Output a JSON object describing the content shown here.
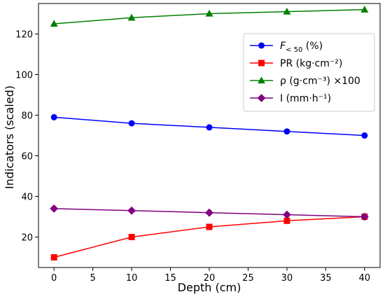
{
  "chart_data": {
    "type": "line",
    "title": "",
    "xlabel": "Depth (cm)",
    "ylabel": "Indicators (scaled)",
    "x": [
      0,
      10,
      20,
      30,
      40
    ],
    "xlim": [
      -2,
      42
    ],
    "ylim": [
      5,
      135
    ],
    "xticks": [
      0,
      5,
      10,
      15,
      20,
      25,
      30,
      35,
      40
    ],
    "yticks": [
      20,
      40,
      60,
      80,
      100,
      120
    ],
    "grid": false,
    "legend_position": "center-right",
    "series": [
      {
        "name": "F<50 (%)",
        "name_main": "F",
        "name_sub": "< 50",
        "name_rest": " (%)",
        "color": "#0000ff",
        "marker": "circle",
        "values": [
          79,
          76,
          74,
          72,
          70
        ]
      },
      {
        "name": "PR (kg·cm⁻²)",
        "color": "#ff0000",
        "marker": "square",
        "values": [
          10,
          20,
          25,
          28,
          30
        ]
      },
      {
        "name": "ρ (g·cm⁻³) ×100",
        "color": "#008000",
        "marker": "triangle",
        "values": [
          125,
          128,
          130,
          131,
          132
        ]
      },
      {
        "name": "I (mm·h⁻¹)",
        "color": "#800080",
        "marker": "diamond",
        "values": [
          34,
          33,
          32,
          31,
          30
        ]
      }
    ]
  }
}
